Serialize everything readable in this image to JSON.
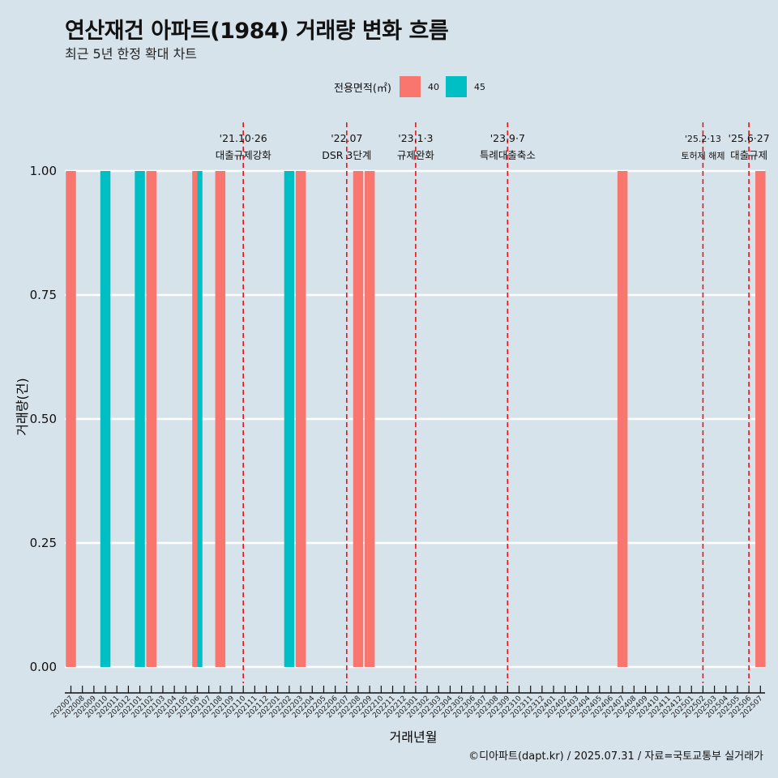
{
  "title": "연산재건 아파트(1984) 거래량 변화 흐름",
  "subtitle": "최근 5년 한정 확대 차트",
  "footer": "©디아파트(dapt.kr) / 2025.07.31 / 자료=국토교통부 실거래가",
  "legend": {
    "title": "전용면적(㎡)",
    "items": [
      {
        "label": "40",
        "color": "#f8766d"
      },
      {
        "label": "45",
        "color": "#00bfc4"
      }
    ]
  },
  "chart_data": {
    "type": "bar",
    "title": "연산재건 아파트(1984) 거래량 변화 흐름",
    "xlabel": "거래년월",
    "ylabel": "거래량(건)",
    "ylim": [
      0,
      1
    ],
    "yticks": [
      "0.00",
      "0.25",
      "0.50",
      "0.75",
      "1.00"
    ],
    "categories": [
      "202007",
      "202008",
      "202009",
      "202010",
      "202011",
      "202012",
      "202101",
      "202102",
      "202103",
      "202104",
      "202105",
      "202106",
      "202107",
      "202108",
      "202109",
      "202110",
      "202111",
      "202112",
      "202201",
      "202202",
      "202203",
      "202204",
      "202205",
      "202206",
      "202207",
      "202208",
      "202209",
      "202210",
      "202211",
      "202212",
      "202301",
      "202302",
      "202303",
      "202304",
      "202305",
      "202306",
      "202307",
      "202308",
      "202309",
      "202310",
      "202311",
      "202312",
      "202401",
      "202402",
      "202403",
      "202404",
      "202405",
      "202406",
      "202407",
      "202408",
      "202409",
      "202410",
      "202411",
      "202412",
      "202501",
      "202502",
      "202503",
      "202504",
      "202505",
      "202506",
      "202507"
    ],
    "series": [
      {
        "name": "40",
        "color": "#f8766d",
        "bars": [
          {
            "x": "202007",
            "value": 1
          },
          {
            "x": "202102",
            "value": 1
          },
          {
            "x": "202106",
            "value": 1
          },
          {
            "x": "202108",
            "value": 1
          },
          {
            "x": "202203",
            "value": 1
          },
          {
            "x": "202208",
            "value": 1
          },
          {
            "x": "202209",
            "value": 1
          },
          {
            "x": "202407",
            "value": 1
          },
          {
            "x": "202507",
            "value": 1
          }
        ]
      },
      {
        "name": "45",
        "color": "#00bfc4",
        "bars": [
          {
            "x": "202010",
            "value": 1
          },
          {
            "x": "202101",
            "value": 1
          },
          {
            "x": "202106",
            "value": 1
          },
          {
            "x": "202202",
            "value": 1
          }
        ]
      }
    ],
    "events": [
      {
        "x": "202110",
        "line1": "'21.10·26",
        "line2": "대출규제강화"
      },
      {
        "x": "202207",
        "line1": "'22.07",
        "line2": "DSR 3단계"
      },
      {
        "x": "202301",
        "line1": "'23.1·3",
        "line2": "규제완화"
      },
      {
        "x": "202309",
        "line1": "'23.9·7",
        "line2": "특례대출축소"
      },
      {
        "x": "202502",
        "line1": "'25.2·13",
        "line2": "토허제 해제"
      },
      {
        "x": "202506",
        "line1": "'25.6·27",
        "line2": "대출규제"
      }
    ]
  }
}
